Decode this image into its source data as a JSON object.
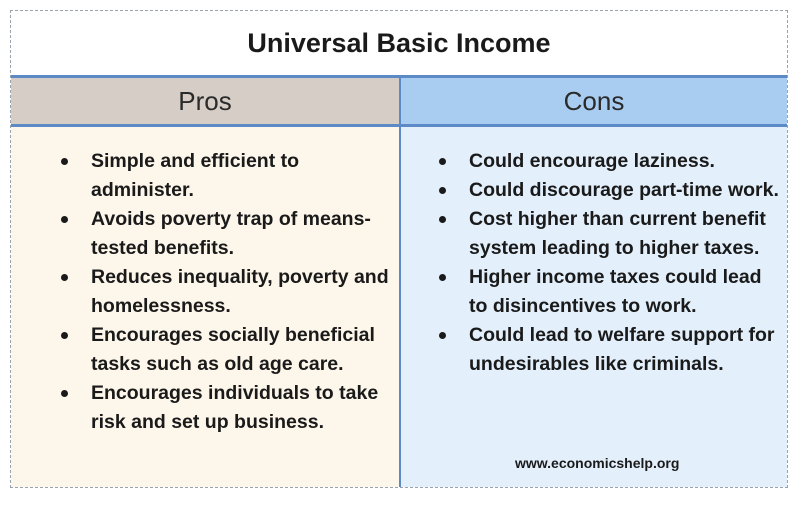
{
  "title": "Universal Basic Income",
  "headers": {
    "pros": "Pros",
    "cons": "Cons"
  },
  "pros": [
    "Simple and efficient to administer.",
    "Avoids poverty trap of means-tested benefits.",
    "Reduces inequality, poverty and homelessness.",
    "Encourages socially beneficial tasks such as old age care.",
    "Encourages individuals to take risk and set up business."
  ],
  "cons": [
    "Could encourage laziness.",
    "Could discourage part-time work.",
    "Cost higher than current benefit system leading to higher taxes.",
    "Higher income taxes could lead to disincentives to work.",
    "Could lead to welfare support for undesirables like criminals."
  ],
  "source": "www.economicshelp.org",
  "colors": {
    "pros_header_bg": "#d6cdc6",
    "cons_header_bg": "#a9cdf0",
    "pros_body_bg": "#fdf6ea",
    "cons_body_bg": "#e3f0fc",
    "rule": "#5b8ac7"
  }
}
